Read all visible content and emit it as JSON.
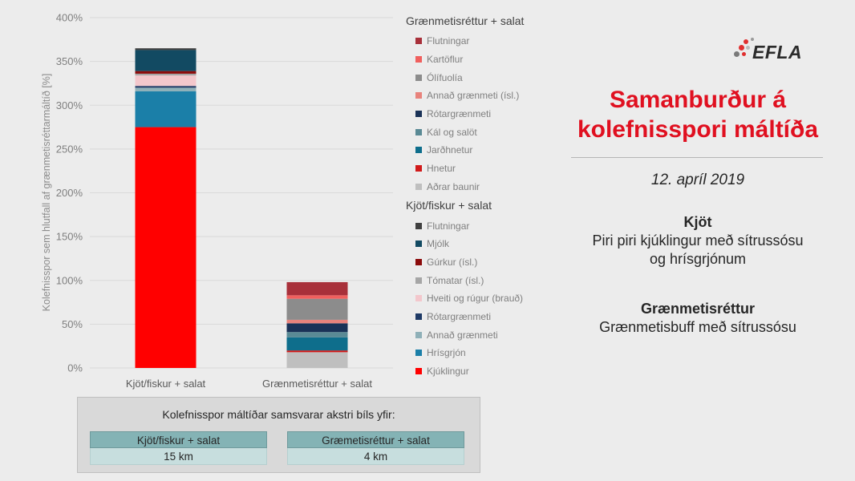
{
  "chart_data": {
    "type": "bar",
    "stacked": true,
    "categories": [
      "Kjöt/fiskur + salat",
      "Grænmetisréttur + salat"
    ],
    "ylabel": "Kolefnisspor sem hlutfall af grænmetisréttarmáltíð [%]",
    "ylim": [
      0,
      400
    ],
    "yticks": [
      "0%",
      "50%",
      "100%",
      "150%",
      "200%",
      "250%",
      "300%",
      "350%",
      "400%"
    ],
    "grid": true,
    "legend_position": "right",
    "legend_groups": [
      {
        "title": "Grænmetisréttur + salat",
        "category_index": 1,
        "series": [
          {
            "name": "Flutningar",
            "color": "#a8303a",
            "value": 15
          },
          {
            "name": "Kartöflur",
            "color": "#f0605e",
            "value": 4
          },
          {
            "name": "Ólífuolía",
            "color": "#8c8c8c",
            "value": 24
          },
          {
            "name": "Annað grænmeti (ísl.)",
            "color": "#e8837c",
            "value": 4
          },
          {
            "name": "Rótargrænmeti",
            "color": "#1a3257",
            "value": 10
          },
          {
            "name": "Kál og salöt",
            "color": "#5a8a95",
            "value": 6
          },
          {
            "name": "Jarðhnetur",
            "color": "#0e6e8c",
            "value": 15
          },
          {
            "name": "Hnetur",
            "color": "#d11a1a",
            "value": 2
          },
          {
            "name": "Aðrar baunir",
            "color": "#bfbfbf",
            "value": 18
          }
        ]
      },
      {
        "title": "Kjöt/fiskur + salat",
        "category_index": 0,
        "series": [
          {
            "name": "Flutningar",
            "color": "#404040",
            "value": 2
          },
          {
            "name": "Mjólk",
            "color": "#124a62",
            "value": 24
          },
          {
            "name": "Gúrkur (ísl.)",
            "color": "#8b0b0b",
            "value": 3
          },
          {
            "name": "Tómatar (ísl.)",
            "color": "#a6a6a6",
            "value": 2
          },
          {
            "name": "Hveiti og rúgur (brauð)",
            "color": "#f3c7cc",
            "value": 12
          },
          {
            "name": "Rótargrænmeti",
            "color": "#1f3a66",
            "value": 2
          },
          {
            "name": "Annað grænmeti",
            "color": "#8fb0b8",
            "value": 4
          },
          {
            "name": "Hrísgrjón",
            "color": "#1b7fa8",
            "value": 41
          },
          {
            "name": "Kjúklingur",
            "color": "#ff0000",
            "value": 275
          }
        ]
      }
    ]
  },
  "logo": {
    "text": "EFLA"
  },
  "side": {
    "title_line1": "Samanburður á",
    "title_line2": "kolefnisspori máltíða",
    "date": "12. apríl 2019",
    "meal1_head": "Kjöt",
    "meal1_line1": "Piri piri kjúklingur með sítrussósu",
    "meal1_line2": "og hrísgrjónum",
    "meal2_head": "Grænmetisréttur",
    "meal2_line1": "Grænmetisbuff með sítrussósu"
  },
  "km_box": {
    "title": "Kolefnisspor máltíðar samsvarar akstri bíls yfir:",
    "col1_head": "Kjöt/fiskur + salat",
    "col1_value": "15 km",
    "col2_head": "Græmetisréttur + salat",
    "col2_value": "4 km"
  }
}
